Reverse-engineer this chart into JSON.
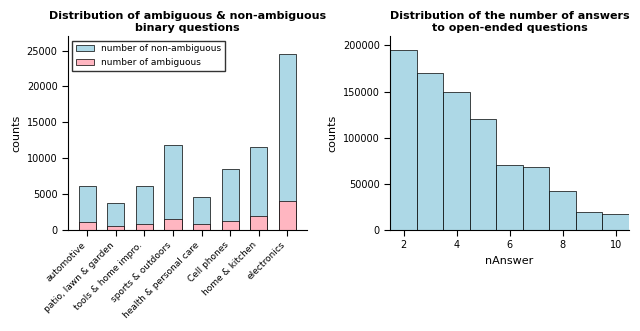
{
  "left_title": "Distribution of ambiguous & non-ambiguous\nbinary questions",
  "left_categories": [
    "automotive",
    "patio, lawn & garden",
    "tools & home impro.",
    "sports & outdoors",
    "health & personal care",
    "Cell phones",
    "home & kitchen",
    "electronics"
  ],
  "non_ambiguous": [
    6200,
    3800,
    6200,
    11800,
    4600,
    8500,
    11500,
    24500
  ],
  "ambiguous": [
    1100,
    500,
    900,
    1600,
    900,
    1200,
    2000,
    4000
  ],
  "left_ylabel": "counts",
  "left_ylim": [
    0,
    27000
  ],
  "left_yticks": [
    0,
    5000,
    10000,
    15000,
    20000,
    25000
  ],
  "bar_color_non_ambiguous": "#add8e6",
  "bar_color_ambiguous": "#ffb6c1",
  "legend_labels": [
    "number of non-ambiguous",
    "number of ambiguous"
  ],
  "right_title": "Distribution of the number of answers\nto open-ended questions",
  "right_xlabel": "nAnswer",
  "right_ylabel": "counts",
  "right_xticks": [
    2,
    4,
    6,
    8,
    10
  ],
  "right_ylim": [
    0,
    210000
  ],
  "right_yticks": [
    0,
    50000,
    100000,
    150000,
    200000
  ],
  "hist_centers": [
    2,
    3,
    4,
    5,
    6,
    7,
    8,
    9,
    10
  ],
  "hist_values": [
    195000,
    170000,
    150000,
    120000,
    70000,
    68000,
    42000,
    20000,
    17000
  ],
  "hist_bar_width": 1.0,
  "hist_color": "#add8e6"
}
